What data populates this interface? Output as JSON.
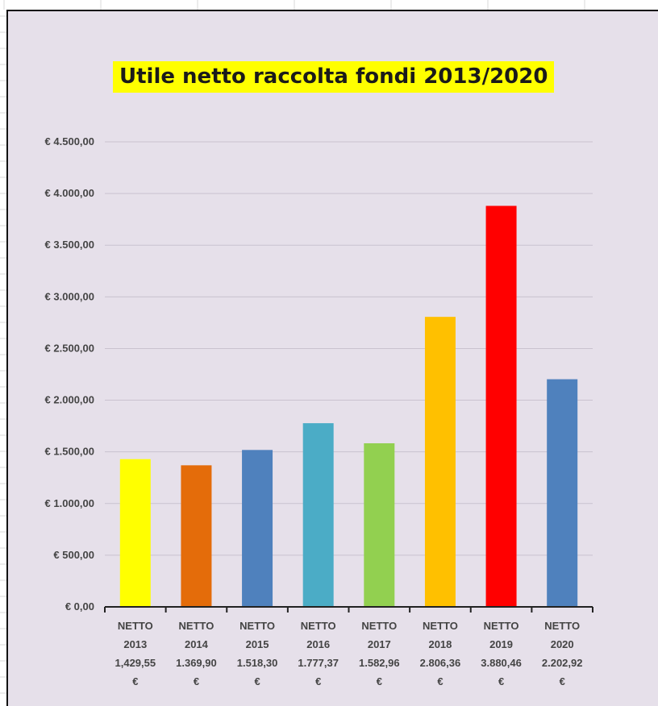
{
  "chart_data": {
    "type": "bar",
    "title": "Utile netto raccolta fondi 2013/2020",
    "xlabel": "",
    "ylabel": "",
    "ylim": [
      0,
      4500
    ],
    "y_ticks": [
      0,
      500,
      1000,
      1500,
      2000,
      2500,
      3000,
      3500,
      4000,
      4500
    ],
    "y_tick_labels": [
      "€ 0,00",
      "€ 500,00",
      "€ 1.000,00",
      "€ 1.500,00",
      "€ 2.000,00",
      "€ 2.500,00",
      "€ 3.000,00",
      "€ 3.500,00",
      "€ 4.000,00",
      "€ 4.500,00"
    ],
    "grid": true,
    "legend": "none",
    "categories": [
      [
        "NETTO",
        "2013",
        "1,429,55",
        "€"
      ],
      [
        "NETTO",
        "2014",
        "1.369,90",
        "€"
      ],
      [
        "NETTO",
        "2015",
        "1.518,30",
        "€"
      ],
      [
        "NETTO",
        "2016",
        "1.777,37",
        "€"
      ],
      [
        "NETTO",
        "2017",
        "1.582,96",
        "€"
      ],
      [
        "NETTO",
        "2018",
        "2.806,36",
        "€"
      ],
      [
        "NETTO",
        "2019",
        "3.880,46",
        "€"
      ],
      [
        "NETTO",
        "2020",
        "2.202,92",
        "€"
      ]
    ],
    "values": [
      1429.55,
      1369.9,
      1518.3,
      1777.37,
      1582.96,
      2806.36,
      3880.46,
      2202.92
    ],
    "colors": [
      "#ffff00",
      "#e46c0a",
      "#4f81bd",
      "#4bacc6",
      "#92d050",
      "#ffc000",
      "#ff0000",
      "#4f81bd"
    ]
  }
}
